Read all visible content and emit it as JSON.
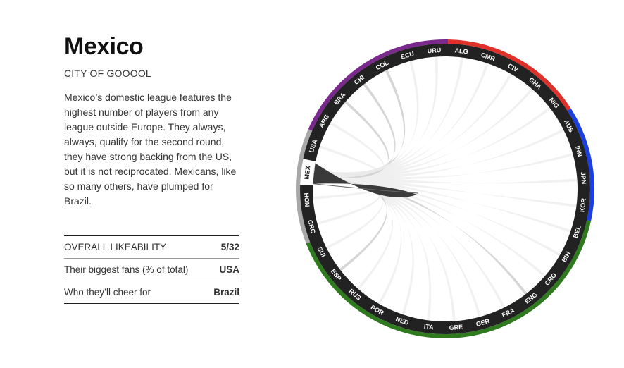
{
  "team": {
    "name": "Mexico",
    "tagline": "CITY OF GOOOOL",
    "description": "Mexico’s domestic league features the highest number of players from any league outside Europe. They always, always, qualify for the second round, they have strong backing from the US, but it is not reciprocated. Mexicans, like so many others, have plumped for Brazil."
  },
  "stats": [
    {
      "label": "OVERALL LIKEABILITY",
      "value": "5/32"
    },
    {
      "label": "Their biggest fans (% of total)",
      "value": "USA"
    },
    {
      "label": "Who they’ll cheer for",
      "value": "Brazil"
    }
  ],
  "colors": {
    "ring": "#222222",
    "selected_segment": "#ffffff",
    "region_purple": "#7a2a8c",
    "region_red": "#e0302a",
    "region_blue": "#1b3fe0",
    "region_green": "#2f7a1e",
    "region_gray": "#a8a8a8",
    "accent_green": "#4a7f33"
  },
  "wheel": {
    "selected": "MEX",
    "countries": [
      "URU",
      "ALG",
      "CMR",
      "CIV",
      "GHA",
      "NIG",
      "AUS",
      "IRN",
      "JPN",
      "KOR",
      "BEL",
      "BIH",
      "CRO",
      "ENG",
      "FRA",
      "GER",
      "GRE",
      "ITA",
      "NED",
      "POR",
      "RUS",
      "ESP",
      "SUI",
      "CRC",
      "HON",
      "MEX",
      "USA",
      "ARG",
      "BRA",
      "CHI",
      "COL",
      "ECU"
    ]
  }
}
